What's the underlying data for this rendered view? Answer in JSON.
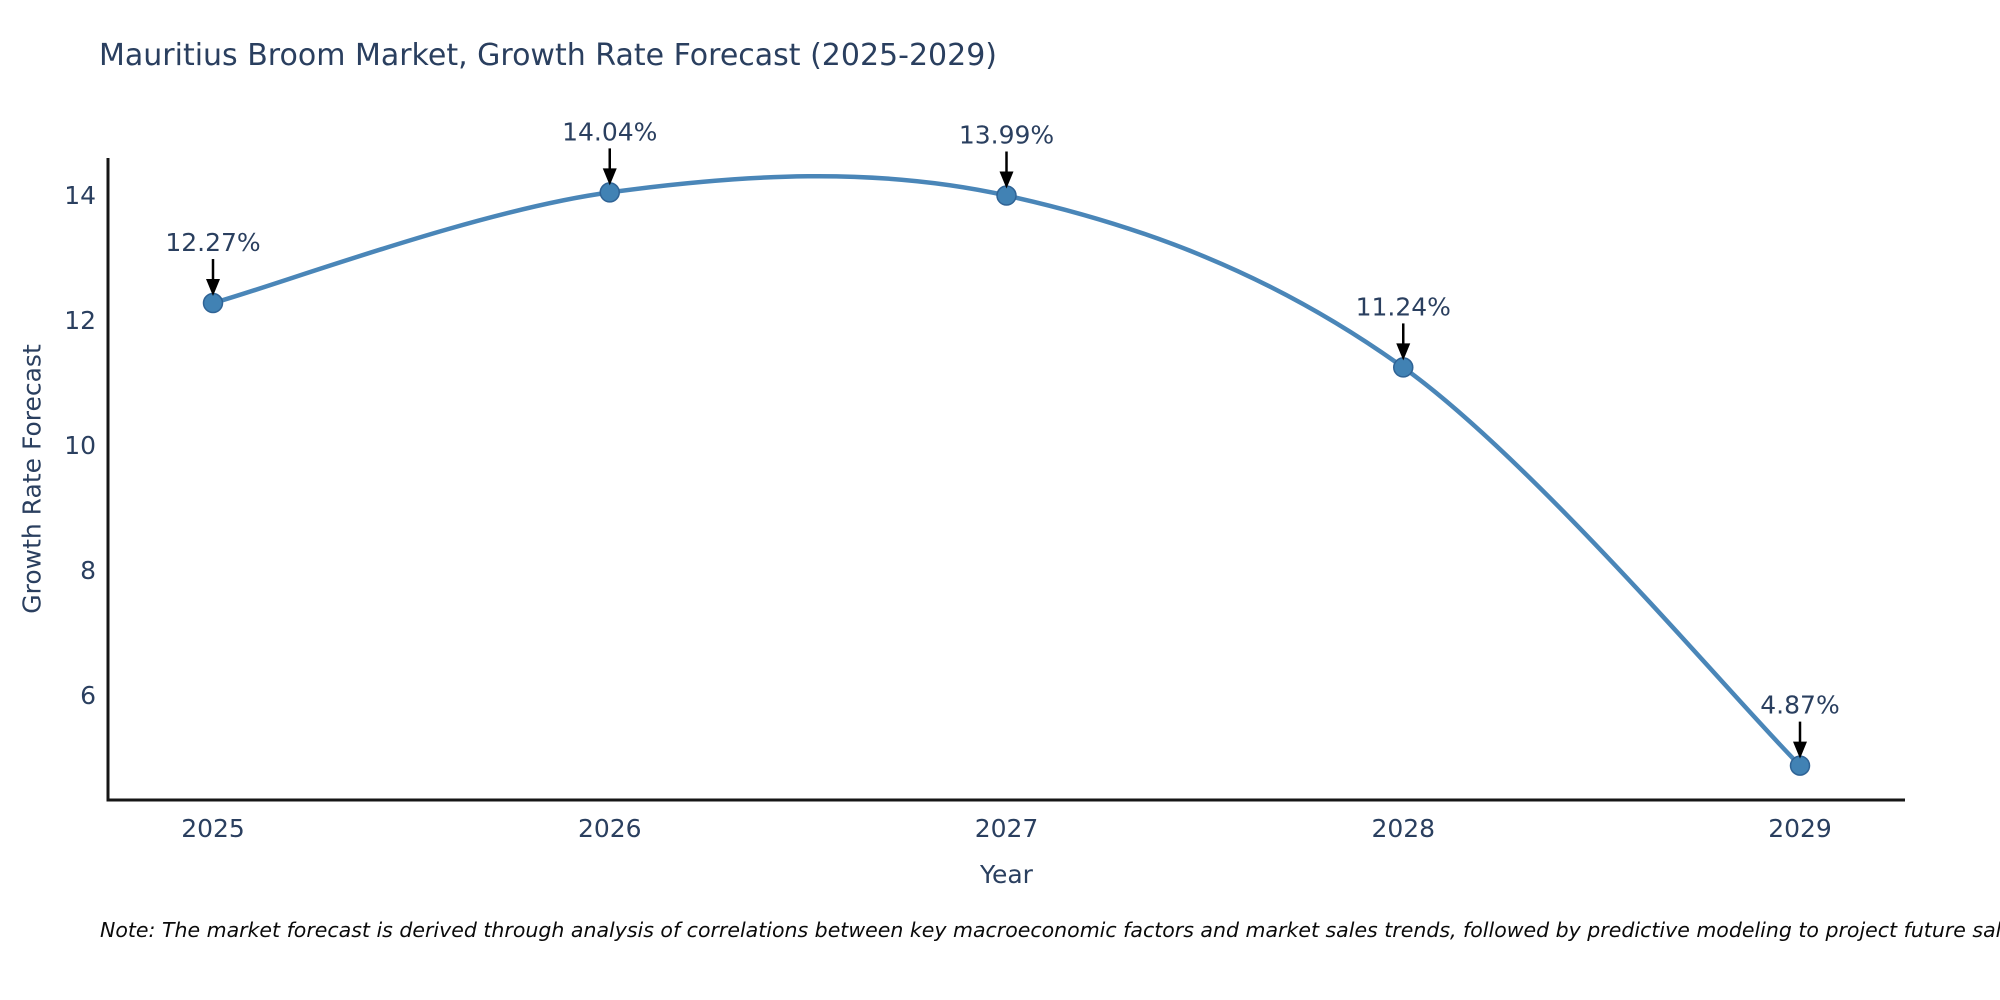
{
  "page": {
    "background_color": "#ffffff"
  },
  "chart_data": {
    "type": "line",
    "title": "Mauritius Broom Market, Growth Rate Forecast (2025-2029)",
    "xlabel": "Year",
    "ylabel": "Growth Rate Forecast",
    "categories": [
      "2025",
      "2026",
      "2027",
      "2028",
      "2029"
    ],
    "series": [
      {
        "name": "Growth Rate Forecast",
        "values": [
          12.27,
          14.04,
          13.99,
          11.24,
          4.87
        ],
        "point_labels": [
          "12.27%",
          "14.04%",
          "13.99%",
          "11.24%",
          "4.87%"
        ]
      }
    ],
    "yticks": [
      14,
      12,
      10,
      8,
      6
    ],
    "ylim": [
      4.32,
      14.59
    ],
    "grid": false,
    "legend_position": "none",
    "line_shape": "spline",
    "line_color": "#4a86b8",
    "marker_color": "#4182b4",
    "marker_edge_color": "#2f6395",
    "axis_line_color": "#161616",
    "text_color": "#2a3f5f",
    "annotation_arrow_color": "#000000",
    "note": "Note: The market forecast is derived through analysis of correlations between key macroeconomic factors and market sales trends, followed by predictive modeling to project future sales"
  }
}
